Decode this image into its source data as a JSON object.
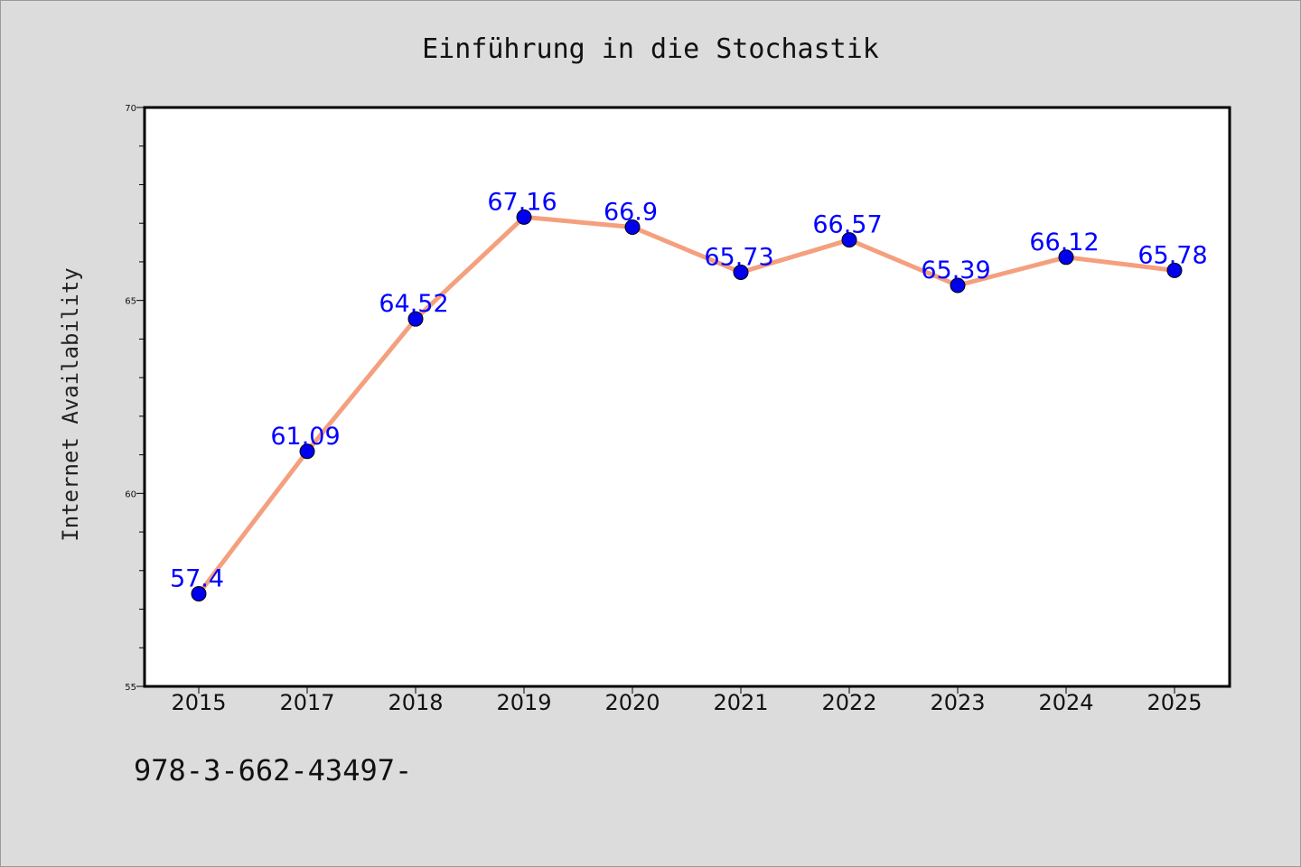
{
  "chart_data": {
    "type": "line",
    "title": "Einführung in die Stochastik",
    "xlabel": "",
    "ylabel": "Internet Availability",
    "categories": [
      "2015",
      "2017",
      "2018",
      "2019",
      "2020",
      "2021",
      "2022",
      "2023",
      "2024",
      "2025"
    ],
    "series": [
      {
        "values": [
          57.4,
          61.09,
          64.52,
          67.16,
          66.9,
          65.73,
          66.57,
          65.39,
          66.12,
          65.78
        ],
        "line_color": "#f4a07e",
        "marker_color": "#0000ee"
      }
    ],
    "data_labels": [
      "57.4",
      "61.09",
      "64.52",
      "67.16",
      "66.9",
      "65.73",
      "66.57",
      "65.39",
      "66.12",
      "65.78"
    ],
    "ylim": [
      55,
      70
    ],
    "y_ticks": [
      55,
      60,
      65,
      70
    ],
    "grid": false,
    "label_color": "#0000ff"
  },
  "footer_text": "978-3-662-43497-"
}
